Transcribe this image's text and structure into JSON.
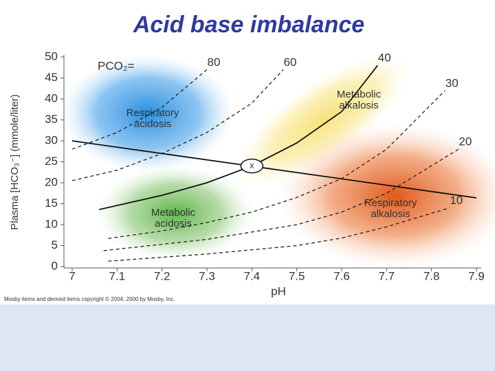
{
  "chart_data": {
    "type": "line",
    "title": "Acid base imbalance",
    "xlabel": "pH",
    "ylabel": "Plasma [HCO₃⁻] (mmole/liter)",
    "xlim": [
      7,
      7.9
    ],
    "ylim": [
      0,
      50
    ],
    "xticks": [
      7,
      7.1,
      7.2,
      7.3,
      7.4,
      7.5,
      7.6,
      7.7,
      7.8,
      7.9
    ],
    "yticks": [
      0,
      5,
      10,
      15,
      20,
      25,
      30,
      35,
      40,
      45,
      50
    ],
    "legend_title": "PCO₂=",
    "series": [
      {
        "name": "80",
        "color": "#222222",
        "style": "dashed",
        "x": [
          7.0,
          7.1,
          7.2,
          7.3
        ],
        "values": [
          28,
          32,
          38,
          47
        ]
      },
      {
        "name": "60",
        "color": "#222222",
        "style": "dashed",
        "x": [
          7.0,
          7.1,
          7.2,
          7.3,
          7.4,
          7.47
        ],
        "values": [
          20.5,
          23,
          27,
          32,
          39,
          47
        ]
      },
      {
        "name": "40",
        "color": "#111111",
        "style": "solid",
        "x": [
          7.06,
          7.2,
          7.3,
          7.4,
          7.5,
          7.6,
          7.68
        ],
        "values": [
          13.6,
          17,
          20,
          24,
          29.5,
          37,
          48
        ]
      },
      {
        "name": "30",
        "color": "#222222",
        "style": "dashed",
        "x": [
          7.08,
          7.2,
          7.3,
          7.4,
          7.5,
          7.6,
          7.7,
          7.83
        ],
        "values": [
          6.7,
          8.5,
          10.5,
          13,
          16.5,
          21,
          28,
          42
        ]
      },
      {
        "name": "20",
        "color": "#222222",
        "style": "dashed",
        "x": [
          7.07,
          7.3,
          7.5,
          7.6,
          7.7,
          7.86
        ],
        "values": [
          3.8,
          6.5,
          10,
          13,
          17.5,
          28
        ]
      },
      {
        "name": "10",
        "color": "#222222",
        "style": "dashed",
        "x": [
          7.08,
          7.3,
          7.5,
          7.6,
          7.7,
          7.84
        ],
        "values": [
          1.3,
          3,
          5,
          6.8,
          9.5,
          14
        ]
      },
      {
        "color": "#111111",
        "style": "solid",
        "x": [
          7.0,
          7.9
        ],
        "values": [
          30,
          16.4
        ]
      }
    ],
    "point": {
      "x": 7.4,
      "y": 24,
      "label": "x"
    },
    "annotations": [
      {
        "lines": [
          "Respiratory",
          "acidosis"
        ]
      },
      {
        "lines": [
          "Metabolic",
          "alkalosis"
        ]
      },
      {
        "lines": [
          "Metabolic",
          "acidosis"
        ]
      },
      {
        "lines": [
          "Respiratory",
          "alkalosis"
        ]
      }
    ],
    "footnote": "Mosby items and derived items copyright © 2004, 2000 by Mosby, Inc."
  }
}
